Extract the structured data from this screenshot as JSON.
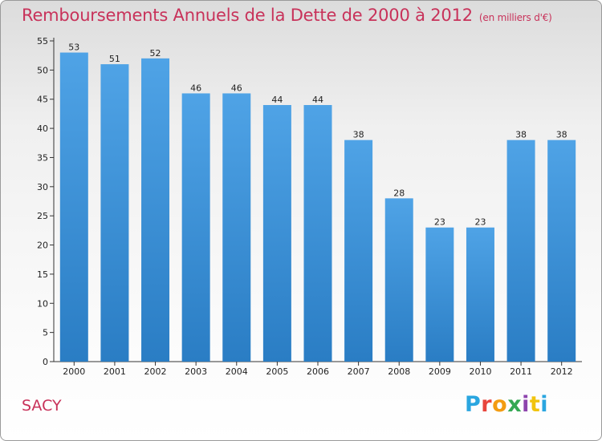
{
  "page": {
    "title": "Remboursements Annuels de la Dette de 2000 à 2012",
    "subtitle": "(en milliers d'€)",
    "commune": "SACY",
    "brand": "Proxiti",
    "brand_colors": [
      "#2aa6e0",
      "#e8453c",
      "#f39c12",
      "#34a853",
      "#8e44ad",
      "#f1c40f",
      "#2aa6e0"
    ]
  },
  "chart_data": {
    "type": "bar",
    "title": "Remboursements Annuels de la Dette de 2000 à 2012",
    "subtitle": "(en milliers d'€)",
    "xlabel": "",
    "ylabel": "",
    "categories": [
      "2000",
      "2001",
      "2002",
      "2003",
      "2004",
      "2005",
      "2006",
      "2007",
      "2008",
      "2009",
      "2010",
      "2011",
      "2012"
    ],
    "values": [
      53,
      51,
      52,
      46,
      46,
      44,
      44,
      38,
      28,
      23,
      23,
      38,
      38
    ],
    "ylim": [
      0,
      55
    ],
    "yticks": [
      0,
      5,
      10,
      15,
      20,
      25,
      30,
      35,
      40,
      45,
      50,
      55
    ],
    "grid": false,
    "bar_color": "#4fa3e6",
    "bar_color_dark": "#2a7dc4"
  }
}
